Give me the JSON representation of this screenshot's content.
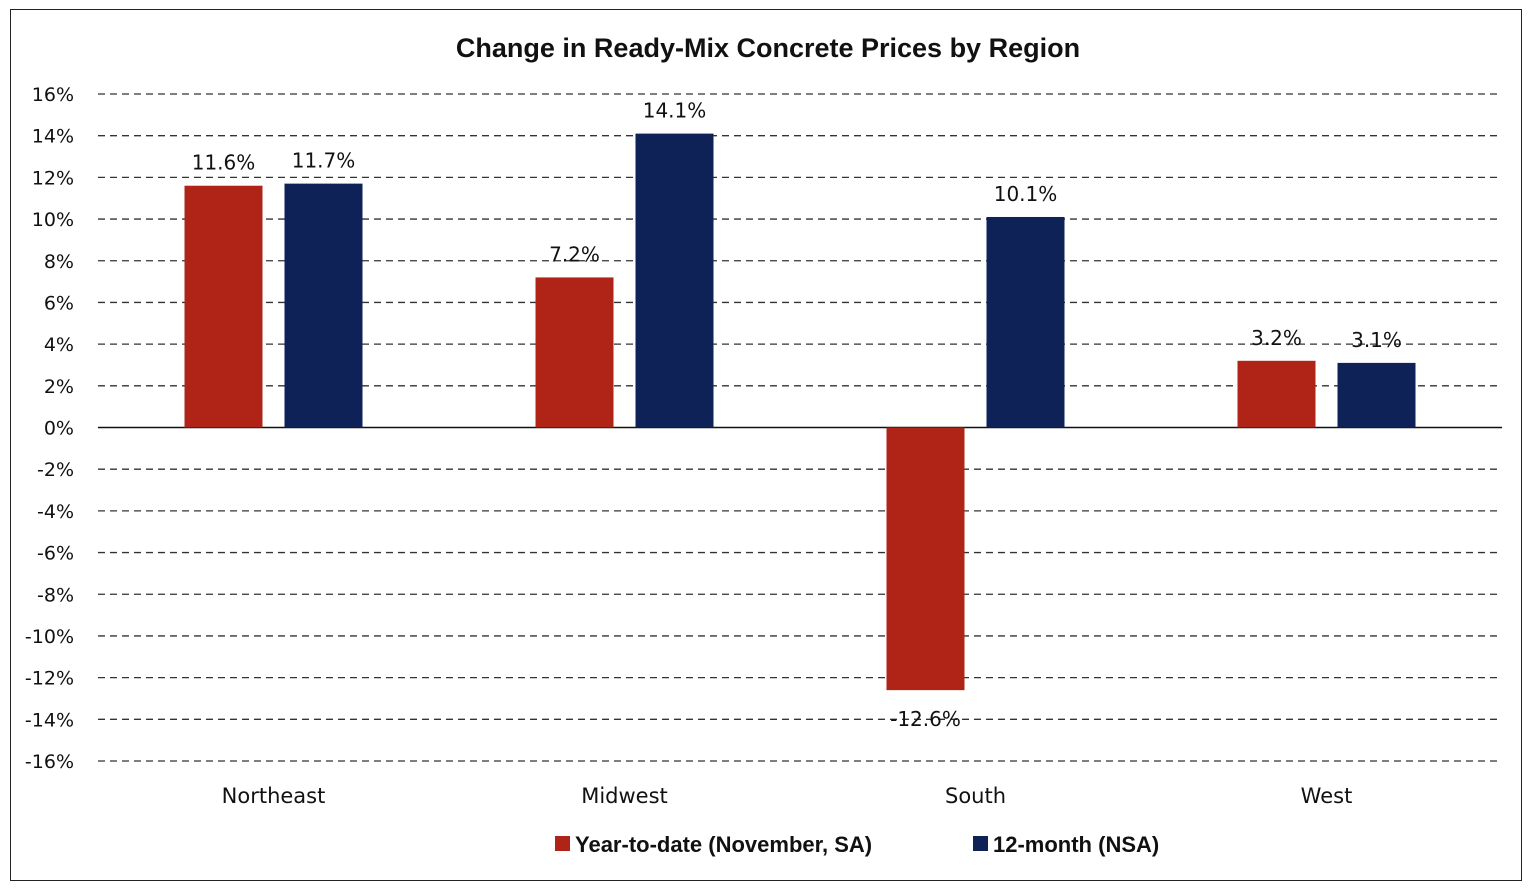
{
  "chart_data": {
    "type": "bar",
    "title": "Change in Ready-Mix Concrete Prices by Region",
    "categories": [
      "Northeast",
      "Midwest",
      "South",
      "West"
    ],
    "series": [
      {
        "name": "Year-to-date (November, SA)",
        "values": [
          11.6,
          7.2,
          -12.6,
          3.2
        ],
        "labels": [
          "11.6%",
          "7.2%",
          "-12.6%",
          "3.2%"
        ],
        "color": "#B02418"
      },
      {
        "name": "12-month (NSA)",
        "values": [
          11.7,
          14.1,
          10.1,
          3.1
        ],
        "labels": [
          "11.7%",
          "14.1%",
          "10.1%",
          "3.1%"
        ],
        "color": "#0E2258"
      }
    ],
    "ylim": [
      -16,
      16
    ],
    "yticks": [
      16,
      14,
      12,
      10,
      8,
      6,
      4,
      2,
      0,
      -2,
      -4,
      -6,
      -8,
      -10,
      -12,
      -14,
      -16
    ],
    "ytick_labels": [
      "16%",
      "14%",
      "12%",
      "10%",
      "8%",
      "6%",
      "4%",
      "2%",
      "0%",
      "-2%",
      "-4%",
      "-6%",
      "-8%",
      "-10%",
      "-12%",
      "-14%",
      "-16%"
    ],
    "grid": true,
    "legend_position": "bottom"
  }
}
